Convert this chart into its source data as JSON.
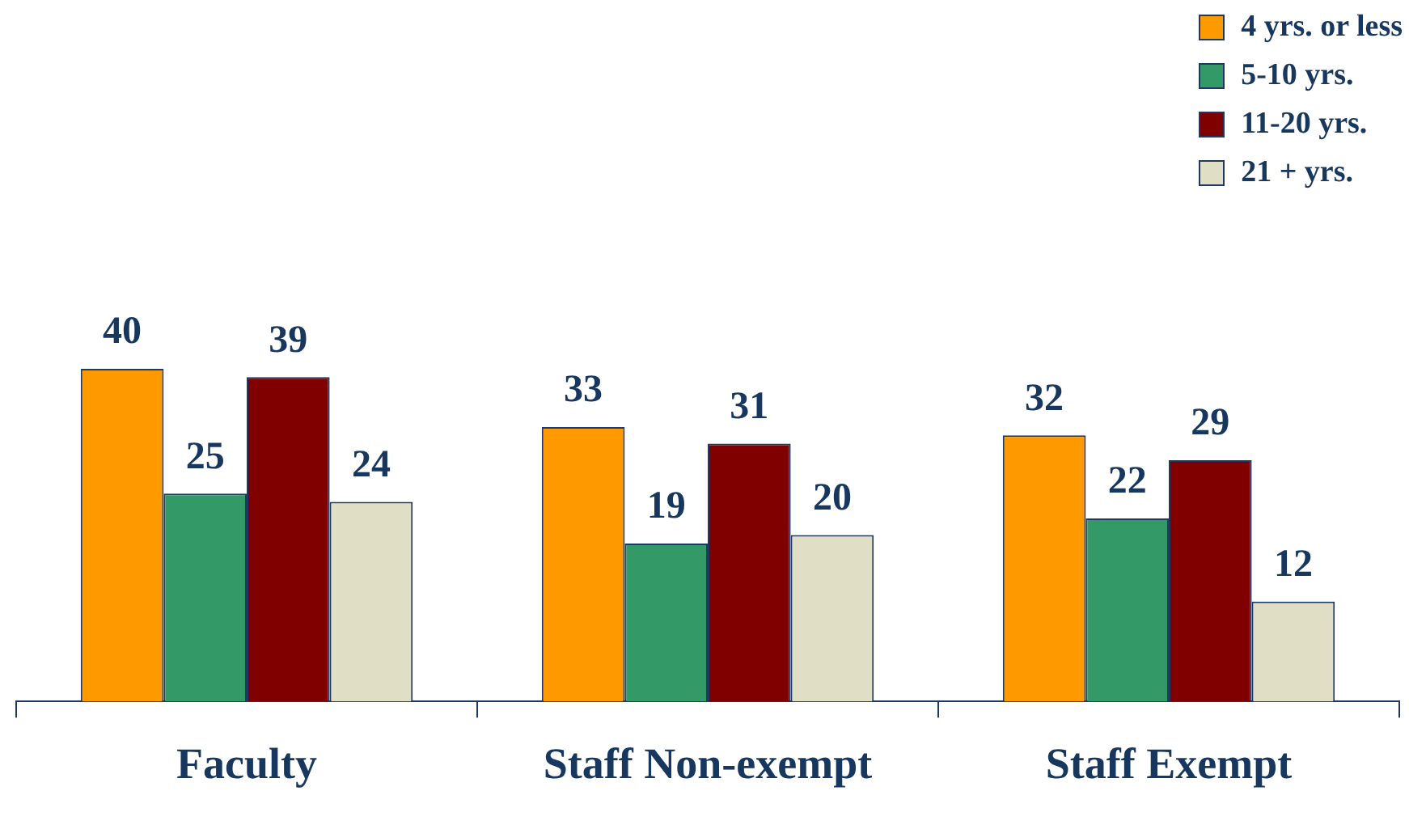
{
  "chart_data": {
    "type": "bar",
    "categories": [
      "Faculty",
      "Staff Non-exempt",
      "Staff Exempt"
    ],
    "series": [
      {
        "name": "4 yrs. or less",
        "color": "#ff9900",
        "values": [
          40,
          33,
          32
        ]
      },
      {
        "name": "5-10 yrs.",
        "color": "#339966",
        "values": [
          25,
          19,
          22
        ]
      },
      {
        "name": "11-20 yrs.",
        "color": "#800000",
        "values": [
          39,
          31,
          29
        ]
      },
      {
        "name": "21 + yrs.",
        "color": "#e0dfc6",
        "values": [
          24,
          20,
          12
        ]
      }
    ],
    "data_labels": true,
    "legend": "top right",
    "grid": false
  }
}
